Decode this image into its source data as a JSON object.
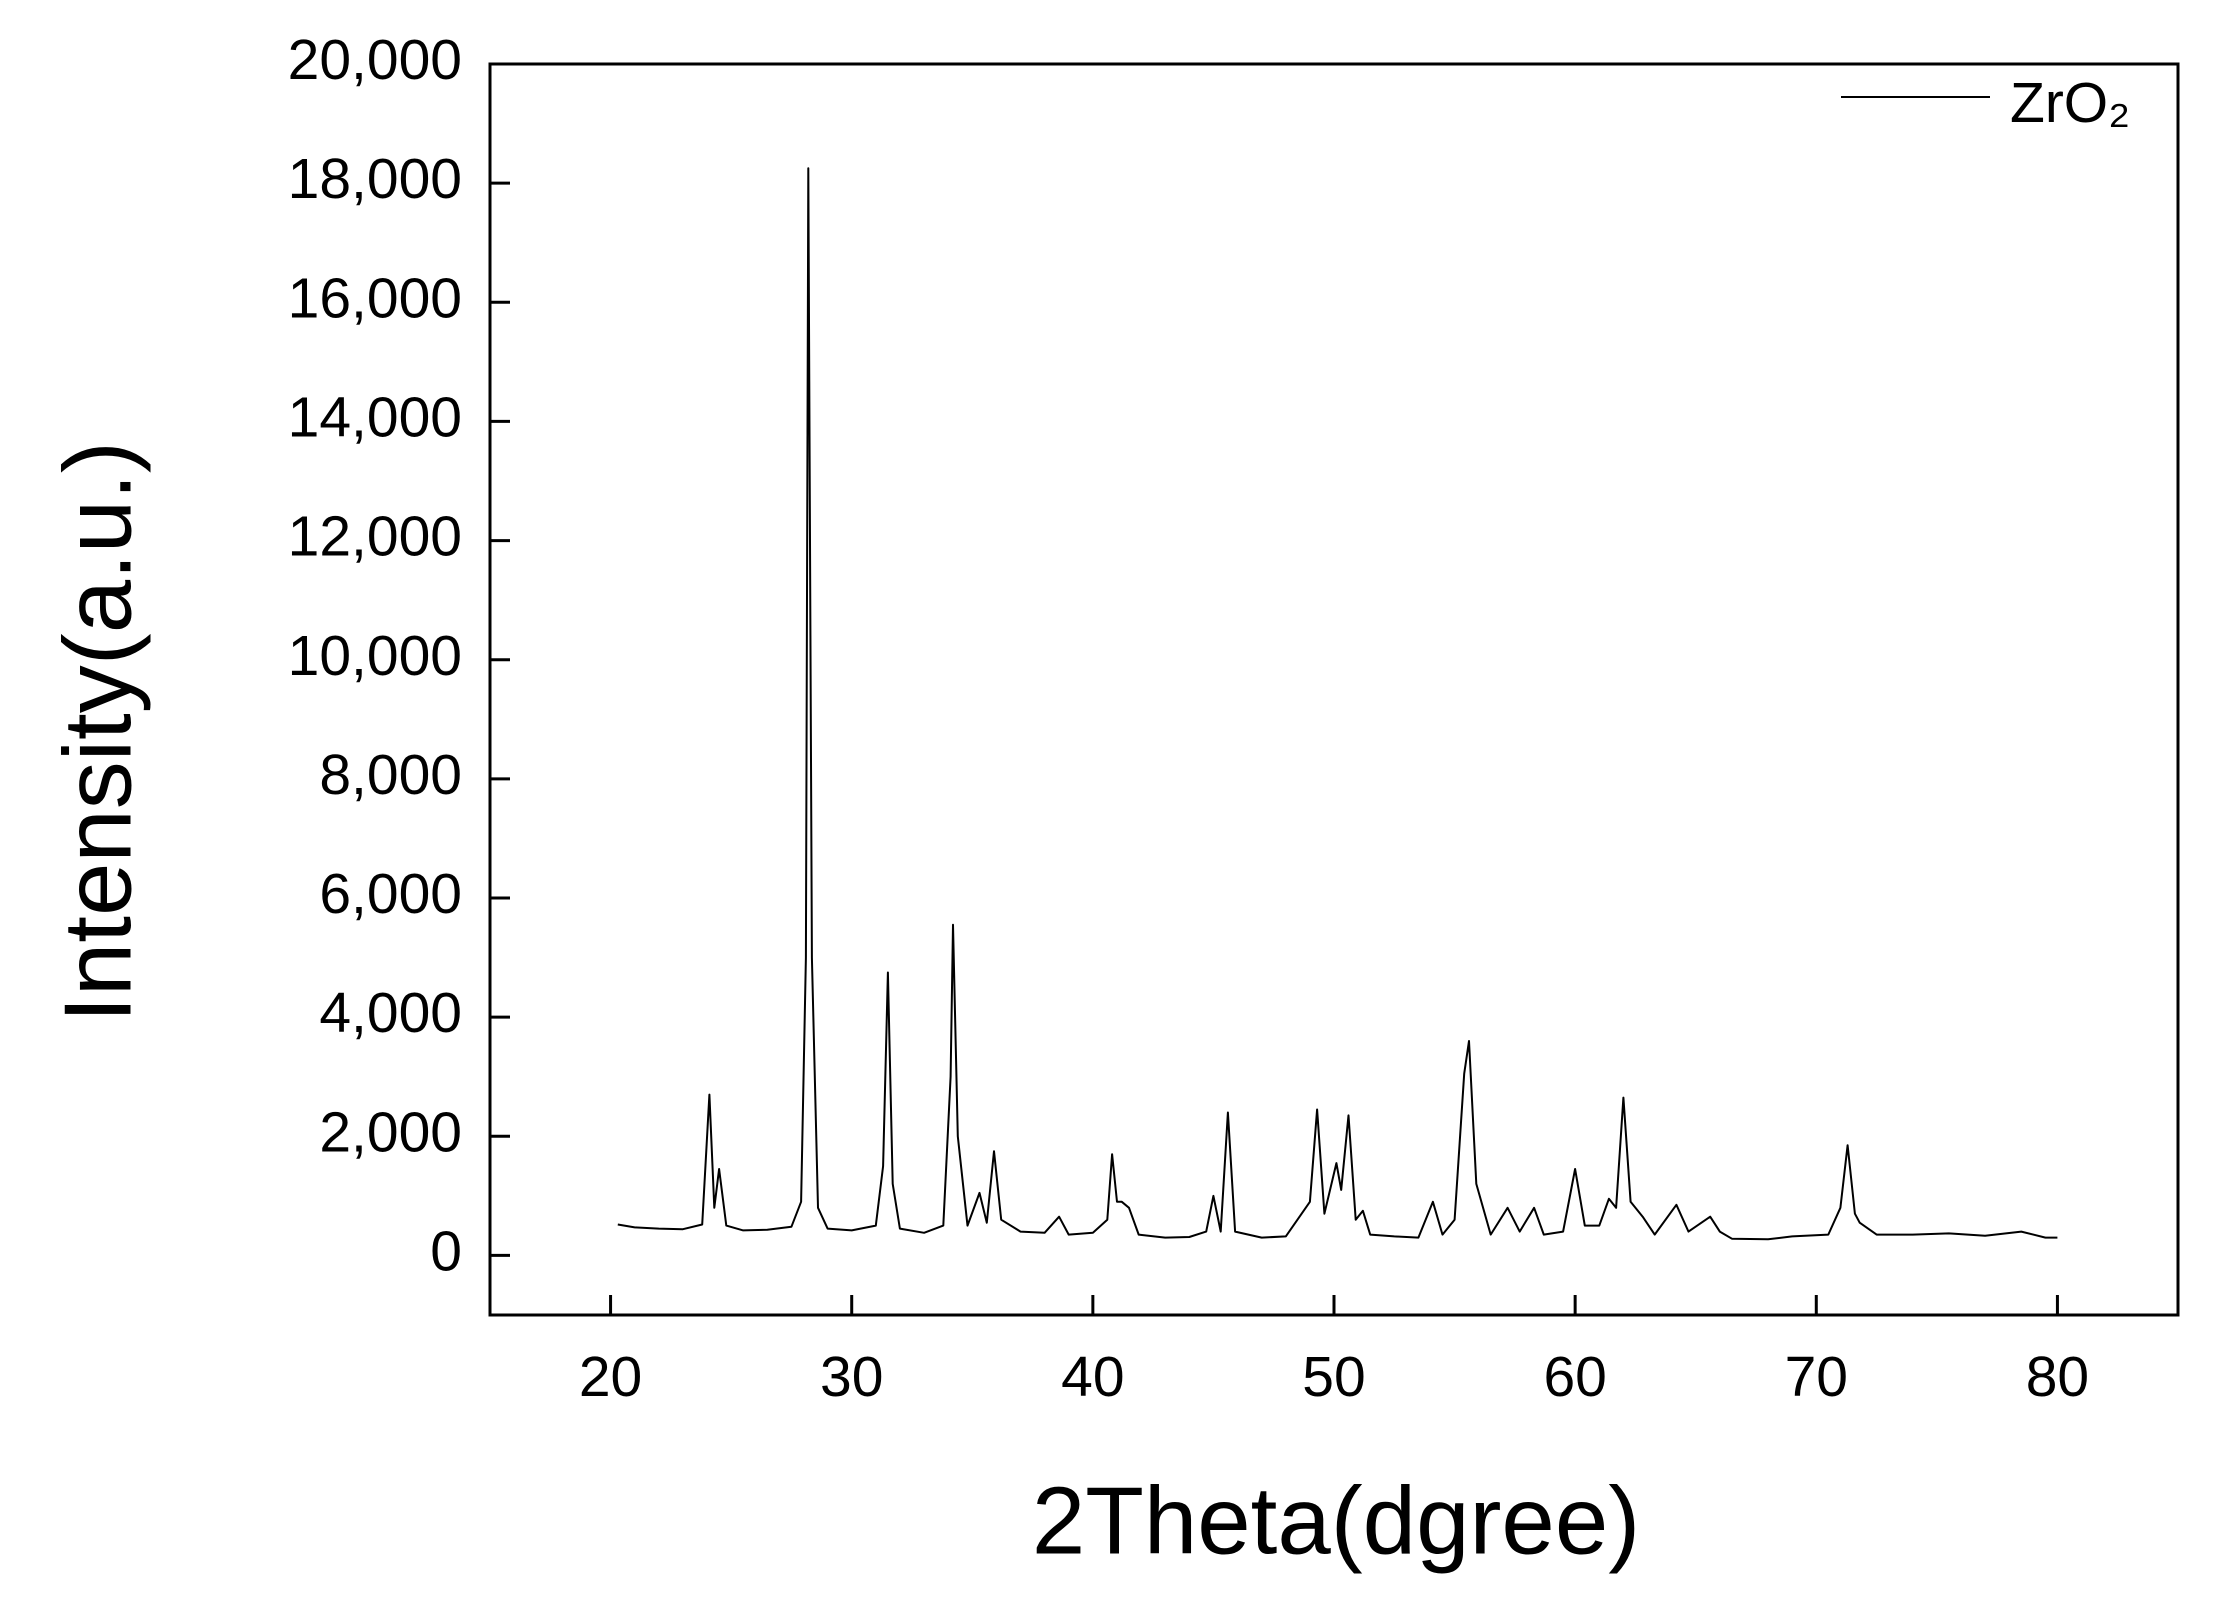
{
  "chart_data": {
    "type": "line",
    "xlabel": "2Theta(dgree)",
    "ylabel": "Intensity(a.u.)",
    "xlim": [
      15,
      85
    ],
    "ylim": [
      -1000,
      20000
    ],
    "xticks": [
      20,
      30,
      40,
      50,
      60,
      70,
      80
    ],
    "yticks": [
      {
        "value": 0,
        "label": "0"
      },
      {
        "value": 2000,
        "label": "2,000"
      },
      {
        "value": 4000,
        "label": "4,000"
      },
      {
        "value": 6000,
        "label": "6,000"
      },
      {
        "value": 8000,
        "label": "8,000"
      },
      {
        "value": 10000,
        "label": "10,000"
      },
      {
        "value": 12000,
        "label": "12,000"
      },
      {
        "value": 14000,
        "label": "14,000"
      },
      {
        "value": 16000,
        "label": "16,000"
      },
      {
        "value": 18000,
        "label": "18,000"
      },
      {
        "value": 20000,
        "label": "20,000"
      }
    ],
    "grid": false,
    "legend": "upper right",
    "x": [
      20.3,
      21,
      22,
      23,
      23.8,
      24.1,
      24.3,
      24.5,
      24.8,
      25.5,
      26.5,
      27.5,
      27.9,
      28.1,
      28.2,
      28.35,
      28.6,
      29,
      30,
      31,
      31.3,
      31.5,
      31.7,
      32,
      33,
      33.8,
      34.1,
      34.2,
      34.4,
      34.8,
      35.3,
      35.6,
      35.9,
      36.2,
      37,
      38,
      38.6,
      39,
      40,
      40.6,
      40.8,
      41,
      41.2,
      41.5,
      41.9,
      43,
      44,
      44.7,
      45,
      45.3,
      45.6,
      45.9,
      47,
      48,
      49,
      49.3,
      49.6,
      50.1,
      50.3,
      50.6,
      50.9,
      51.2,
      51.5,
      52.5,
      53.5,
      54.1,
      54.5,
      55,
      55.4,
      55.6,
      55.9,
      56.5,
      57.2,
      57.7,
      58.3,
      58.7,
      59.5,
      60,
      60.4,
      61,
      61.4,
      61.7,
      62,
      62.3,
      62.8,
      63.3,
      64.2,
      64.7,
      65.6,
      66,
      66.5,
      68,
      69,
      70.5,
      71,
      71.3,
      71.6,
      71.8,
      72.5,
      74,
      75.5,
      77,
      78.5,
      79.5,
      80
    ],
    "series": [
      {
        "name": "ZrO₂",
        "color": "#000000",
        "values": [
          520,
          470,
          450,
          440,
          520,
          2700,
          800,
          1450,
          500,
          420,
          430,
          480,
          900,
          5000,
          18250,
          5000,
          800,
          450,
          420,
          500,
          1500,
          4750,
          1200,
          450,
          380,
          500,
          3000,
          5550,
          2000,
          500,
          1050,
          550,
          1750,
          600,
          400,
          380,
          650,
          350,
          380,
          600,
          1700,
          900,
          900,
          800,
          350,
          300,
          310,
          400,
          1000,
          400,
          2400,
          400,
          300,
          320,
          900,
          2450,
          700,
          1550,
          1100,
          2350,
          600,
          750,
          350,
          320,
          300,
          900,
          350,
          600,
          3050,
          3600,
          1200,
          350,
          800,
          400,
          800,
          350,
          400,
          1450,
          500,
          500,
          950,
          800,
          2650,
          900,
          650,
          350,
          850,
          400,
          650,
          400,
          280,
          270,
          320,
          350,
          800,
          1850,
          700,
          550,
          350,
          350,
          370,
          330,
          400,
          300,
          300
        ]
      }
    ]
  }
}
